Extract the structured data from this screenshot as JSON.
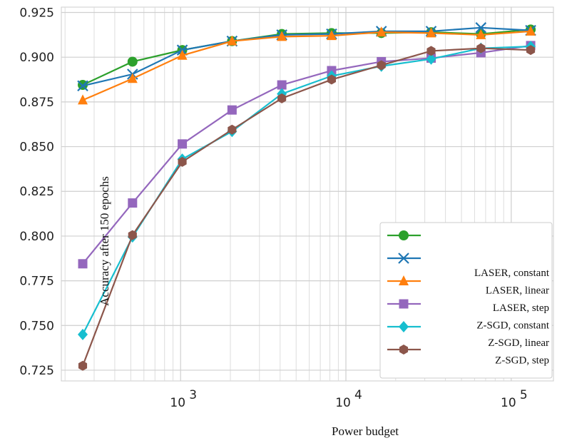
{
  "chart_data": {
    "type": "line",
    "xlabel": "Power budget",
    "ylabel": "Accuracy after 150 epochs",
    "xscale": "log",
    "xlim": [
      190,
      180000
    ],
    "ylim": [
      0.719,
      0.928
    ],
    "x_ticks": [
      {
        "value": 1000,
        "base": "10",
        "exp": "3"
      },
      {
        "value": 10000,
        "base": "10",
        "exp": "4"
      },
      {
        "value": 100000,
        "base": "10",
        "exp": "5"
      }
    ],
    "y_ticks": [
      "0.925",
      "0.900",
      "0.875",
      "0.850",
      "0.825",
      "0.800",
      "0.775",
      "0.750",
      "0.725"
    ],
    "grid": true,
    "legend_position": "lower-right",
    "x": [
      256,
      512,
      1024,
      2048,
      4096,
      8192,
      16384,
      32768,
      65536,
      131072
    ],
    "series": [
      {
        "name": "",
        "color": "#2ca02c",
        "marker": "circle",
        "values": [
          0.8845,
          0.8975,
          0.904,
          0.909,
          0.913,
          0.9135,
          0.9135,
          0.914,
          0.913,
          0.9155
        ]
      },
      {
        "name": "",
        "color": "#1f77b4",
        "marker": "x",
        "values": [
          0.884,
          0.8905,
          0.904,
          0.909,
          0.9125,
          0.913,
          0.9145,
          0.9145,
          0.9165,
          0.915
        ]
      },
      {
        "name": "LASER, constant",
        "color": "#ff7f0e",
        "marker": "triangle",
        "values": [
          0.876,
          0.888,
          0.901,
          0.909,
          0.9115,
          0.912,
          0.914,
          0.9135,
          0.9125,
          0.9145
        ]
      },
      {
        "name": "LASER, linear",
        "color": "#9467bd",
        "marker": "square",
        "values": [
          0.7845,
          0.8185,
          0.8515,
          0.8705,
          0.8845,
          0.8925,
          0.8975,
          0.8995,
          0.9025,
          0.9065
        ]
      },
      {
        "name": "LASER, step",
        "color": "#17becf",
        "marker": "diamond",
        "values": [
          0.745,
          0.7995,
          0.843,
          0.8585,
          0.8795,
          0.8895,
          0.895,
          0.899,
          0.905,
          0.906
        ]
      },
      {
        "name": "Z-SGD, constant",
        "color": "#8c564b",
        "marker": "hexagon",
        "values": [
          0.7275,
          0.8005,
          0.8415,
          0.8595,
          0.877,
          0.8875,
          0.8955,
          0.9035,
          0.905,
          0.904
        ]
      }
    ],
    "legend_labels": [
      "LASER, constant",
      "LASER, linear",
      "LASER, step",
      "Z-SGD, constant",
      "Z-SGD, linear",
      "Z-SGD, step"
    ]
  }
}
